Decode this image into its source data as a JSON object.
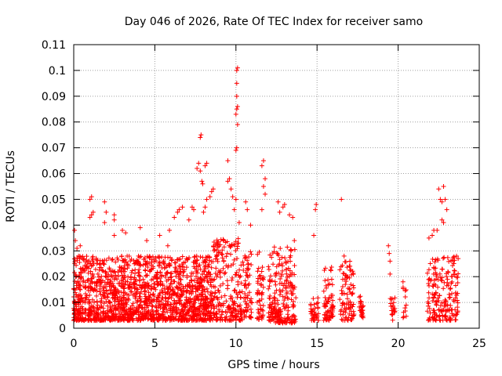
{
  "chart_data": {
    "type": "scatter",
    "title": "Day 046 of 2026, Rate Of TEC Index for receiver samo",
    "xlabel": "GPS time / hours",
    "ylabel": "ROTI / TECUs",
    "xlim": [
      0,
      25
    ],
    "ylim": [
      0,
      0.11
    ],
    "x_ticks": [
      0,
      5,
      10,
      15,
      20,
      25
    ],
    "x_tick_labels": [
      "0",
      "5",
      "10",
      "15",
      "20",
      "25"
    ],
    "y_ticks": [
      0,
      0.01,
      0.02,
      0.03,
      0.04,
      0.05,
      0.06,
      0.07,
      0.08,
      0.09,
      0.1,
      0.11
    ],
    "y_tick_labels": [
      "0",
      "0.01",
      "0.02",
      "0.03",
      "0.04",
      "0.05",
      "0.06",
      "0.07",
      "0.08",
      "0.09",
      "0.1",
      "0.11"
    ],
    "grid": true,
    "marker": "+",
    "marker_color": "#ff0000",
    "dense_bands": [
      {
        "x": [
          0.0,
          8.6
        ],
        "y": [
          0.003,
          0.028
        ],
        "count": 1600
      },
      {
        "x": [
          8.6,
          10.4
        ],
        "y": [
          0.003,
          0.035
        ],
        "count": 220
      },
      {
        "x": [
          10.4,
          11.0
        ],
        "y": [
          0.004,
          0.03
        ],
        "count": 60
      },
      {
        "x": [
          11.3,
          11.7
        ],
        "y": [
          0.003,
          0.03
        ],
        "count": 50
      },
      {
        "x": [
          12.0,
          13.7
        ],
        "y": [
          0.002,
          0.032
        ],
        "count": 230
      },
      {
        "x": [
          14.6,
          15.1
        ],
        "y": [
          0.003,
          0.012
        ],
        "count": 40
      },
      {
        "x": [
          15.4,
          16.0
        ],
        "y": [
          0.003,
          0.024
        ],
        "count": 70
      },
      {
        "x": [
          16.4,
          17.3
        ],
        "y": [
          0.003,
          0.028
        ],
        "count": 90
      },
      {
        "x": [
          17.6,
          17.9
        ],
        "y": [
          0.004,
          0.013
        ],
        "count": 25
      },
      {
        "x": [
          19.5,
          19.8
        ],
        "y": [
          0.003,
          0.012
        ],
        "count": 20
      },
      {
        "x": [
          20.3,
          20.5
        ],
        "y": [
          0.004,
          0.018
        ],
        "count": 12
      },
      {
        "x": [
          21.8,
          23.7
        ],
        "y": [
          0.003,
          0.028
        ],
        "count": 190
      }
    ],
    "points": [
      [
        0.05,
        0.038
      ],
      [
        0.1,
        0.034
      ],
      [
        0.2,
        0.031
      ],
      [
        0.4,
        0.032
      ],
      [
        1.0,
        0.05
      ],
      [
        1.1,
        0.051
      ],
      [
        1.0,
        0.043
      ],
      [
        1.1,
        0.044
      ],
      [
        1.2,
        0.045
      ],
      [
        1.9,
        0.041
      ],
      [
        1.9,
        0.049
      ],
      [
        2.0,
        0.045
      ],
      [
        2.5,
        0.044
      ],
      [
        2.5,
        0.042
      ],
      [
        2.5,
        0.036
      ],
      [
        3.0,
        0.038
      ],
      [
        3.2,
        0.037
      ],
      [
        4.1,
        0.039
      ],
      [
        4.5,
        0.034
      ],
      [
        5.3,
        0.036
      ],
      [
        5.8,
        0.032
      ],
      [
        5.9,
        0.038
      ],
      [
        6.2,
        0.043
      ],
      [
        6.4,
        0.045
      ],
      [
        6.5,
        0.046
      ],
      [
        6.7,
        0.047
      ],
      [
        7.1,
        0.042
      ],
      [
        7.3,
        0.047
      ],
      [
        7.4,
        0.046
      ],
      [
        7.6,
        0.062
      ],
      [
        7.7,
        0.064
      ],
      [
        7.8,
        0.061
      ],
      [
        7.8,
        0.074
      ],
      [
        7.85,
        0.075
      ],
      [
        7.9,
        0.057
      ],
      [
        7.95,
        0.056
      ],
      [
        8.1,
        0.063
      ],
      [
        8.2,
        0.064
      ],
      [
        8.2,
        0.05
      ],
      [
        8.4,
        0.051
      ],
      [
        8.5,
        0.053
      ],
      [
        8.6,
        0.054
      ],
      [
        8.0,
        0.045
      ],
      [
        8.1,
        0.047
      ],
      [
        9.5,
        0.065
      ],
      [
        9.5,
        0.057
      ],
      [
        9.6,
        0.058
      ],
      [
        9.7,
        0.054
      ],
      [
        9.8,
        0.051
      ],
      [
        9.9,
        0.046
      ],
      [
        10.0,
        0.05
      ],
      [
        10.0,
        0.069
      ],
      [
        10.05,
        0.07
      ],
      [
        10.0,
        0.083
      ],
      [
        10.05,
        0.085
      ],
      [
        10.1,
        0.086
      ],
      [
        10.1,
        0.079
      ],
      [
        10.05,
        0.09
      ],
      [
        10.05,
        0.095
      ],
      [
        10.05,
        0.1
      ],
      [
        10.1,
        0.101
      ],
      [
        10.2,
        0.041
      ],
      [
        10.6,
        0.049
      ],
      [
        10.7,
        0.046
      ],
      [
        10.9,
        0.04
      ],
      [
        11.6,
        0.063
      ],
      [
        11.7,
        0.065
      ],
      [
        11.7,
        0.055
      ],
      [
        11.8,
        0.058
      ],
      [
        11.8,
        0.052
      ],
      [
        11.6,
        0.046
      ],
      [
        12.6,
        0.049
      ],
      [
        12.7,
        0.045
      ],
      [
        12.9,
        0.047
      ],
      [
        13.0,
        0.048
      ],
      [
        13.3,
        0.044
      ],
      [
        13.5,
        0.043
      ],
      [
        13.6,
        0.034
      ],
      [
        14.9,
        0.046
      ],
      [
        14.95,
        0.048
      ],
      [
        14.8,
        0.036
      ],
      [
        16.5,
        0.05
      ],
      [
        19.4,
        0.032
      ],
      [
        19.45,
        0.029
      ],
      [
        19.5,
        0.026
      ],
      [
        19.5,
        0.021
      ],
      [
        20.3,
        0.018
      ],
      [
        21.9,
        0.035
      ],
      [
        22.1,
        0.036
      ],
      [
        22.2,
        0.038
      ],
      [
        22.4,
        0.038
      ],
      [
        22.5,
        0.054
      ],
      [
        22.6,
        0.05
      ],
      [
        22.7,
        0.049
      ],
      [
        22.8,
        0.055
      ],
      [
        22.7,
        0.042
      ],
      [
        22.8,
        0.041
      ],
      [
        22.9,
        0.05
      ],
      [
        23.0,
        0.046
      ],
      [
        23.6,
        0.028
      ],
      [
        23.7,
        0.027
      ]
    ]
  }
}
